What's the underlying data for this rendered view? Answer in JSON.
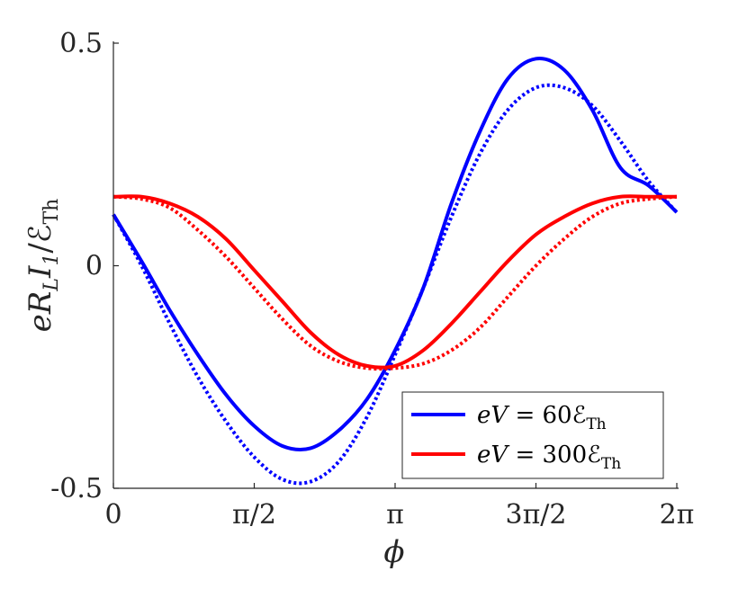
{
  "chart_data": {
    "type": "line",
    "xlabel": "ϕ",
    "ylabel": "eR_L I_1/ℰ_Th",
    "xlim": [
      0,
      6.2832
    ],
    "ylim": [
      -0.5,
      0.5
    ],
    "x_ticks": [
      {
        "value": 0,
        "label": "0"
      },
      {
        "value": 1.5708,
        "label": "π/2"
      },
      {
        "value": 3.1416,
        "label": "π"
      },
      {
        "value": 4.7124,
        "label": "3π/2"
      },
      {
        "value": 6.2832,
        "label": "2π"
      }
    ],
    "y_ticks": [
      {
        "value": -0.5,
        "label": "-0.5"
      },
      {
        "value": 0,
        "label": "0"
      },
      {
        "value": 0.5,
        "label": "0.5"
      }
    ],
    "grid": false,
    "legend_position": "bottom-right",
    "x": [
      0,
      0.3142,
      0.6283,
      0.9425,
      1.2566,
      1.5708,
      1.885,
      2.1991,
      2.5133,
      2.8274,
      3.1416,
      3.4558,
      3.7699,
      4.0841,
      4.3982,
      4.7124,
      5.0265,
      5.3407,
      5.6549,
      5.969,
      6.2832
    ],
    "series": [
      {
        "name": "eV = 60ℰ_Th",
        "color": "#0000ff",
        "style": "solid",
        "values": [
          0.115,
          0.01,
          -0.1,
          -0.2,
          -0.29,
          -0.36,
          -0.405,
          -0.41,
          -0.37,
          -0.3,
          -0.19,
          -0.05,
          0.14,
          0.3,
          0.42,
          0.465,
          0.44,
          0.35,
          0.22,
          0.18,
          0.12
        ]
      },
      {
        "name": "",
        "color": "#0000ff",
        "style": "dotted",
        "values": [
          0.115,
          0.0,
          -0.13,
          -0.25,
          -0.35,
          -0.43,
          -0.48,
          -0.485,
          -0.44,
          -0.34,
          -0.2,
          -0.05,
          0.11,
          0.25,
          0.35,
          0.4,
          0.4,
          0.36,
          0.28,
          0.19,
          0.12
        ]
      },
      {
        "name": "eV = 300ℰ_Th",
        "color": "#ff0000",
        "style": "solid",
        "values": [
          0.155,
          0.155,
          0.14,
          0.11,
          0.06,
          -0.01,
          -0.08,
          -0.15,
          -0.2,
          -0.225,
          -0.225,
          -0.19,
          -0.13,
          -0.06,
          0.01,
          0.07,
          0.11,
          0.14,
          0.155,
          0.155,
          0.155
        ]
      },
      {
        "name": "",
        "color": "#ff0000",
        "style": "dotted",
        "values": [
          0.155,
          0.15,
          0.13,
          0.08,
          0.02,
          -0.05,
          -0.12,
          -0.18,
          -0.215,
          -0.23,
          -0.23,
          -0.22,
          -0.19,
          -0.14,
          -0.07,
          0.0,
          0.06,
          0.11,
          0.14,
          0.15,
          0.155
        ]
      }
    ],
    "legend": [
      {
        "label": "eV = 60ℰ_Th",
        "color": "#0000ff"
      },
      {
        "label": "eV = 300ℰ_Th",
        "color": "#ff0000"
      }
    ]
  }
}
